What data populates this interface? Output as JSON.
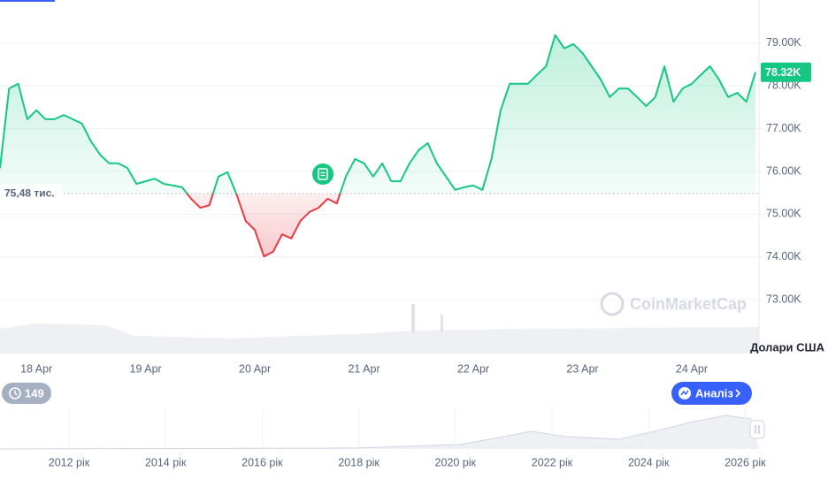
{
  "chart_data": {
    "type": "line",
    "categories": [
      null,
      null,
      null,
      null,
      "18 Apr",
      null,
      null,
      null,
      null,
      null,
      null,
      null,
      null,
      null,
      null,
      null,
      "19 Apr",
      null,
      null,
      null,
      null,
      null,
      null,
      null,
      null,
      null,
      null,
      null,
      "20 Apr",
      null,
      null,
      null,
      null,
      null,
      null,
      null,
      null,
      null,
      null,
      null,
      "21 Apr",
      null,
      null,
      null,
      null,
      null,
      null,
      null,
      null,
      null,
      null,
      null,
      "22 Apr",
      null,
      null,
      null,
      null,
      null,
      null,
      null,
      null,
      null,
      null,
      null,
      "23 Apr",
      null,
      null,
      null,
      null,
      null,
      null,
      null,
      null,
      null,
      null,
      null,
      "24 Apr",
      null,
      null,
      null,
      null,
      null,
      null,
      null
    ],
    "values": [
      76080,
      77940,
      78050,
      77220,
      77430,
      77220,
      77220,
      77320,
      77220,
      77120,
      76700,
      76390,
      76190,
      76190,
      76080,
      75710,
      75770,
      75830,
      75710,
      75670,
      75630,
      75360,
      75150,
      75210,
      75880,
      75980,
      75460,
      74840,
      74630,
      74010,
      74120,
      74530,
      74430,
      74840,
      75050,
      75150,
      75360,
      75250,
      75880,
      76290,
      76190,
      75880,
      76190,
      75770,
      75770,
      76190,
      76500,
      76660,
      76190,
      75880,
      75570,
      75630,
      75670,
      75570,
      76290,
      77430,
      78050,
      78050,
      78050,
      78260,
      78460,
      79190,
      78880,
      78980,
      78770,
      78460,
      78150,
      77740,
      77940,
      77940,
      77740,
      77530,
      77740,
      78460,
      77630,
      77940,
      78050,
      78260,
      78460,
      78150,
      77740,
      77840,
      77630,
      78320
    ],
    "up_color": "#16c784",
    "down_color": "#ea3943",
    "ylim": [
      71740,
      80010
    ],
    "yticks": [
      {
        "value": 73000,
        "label": "73.00K"
      },
      {
        "value": 74000,
        "label": "74.00K"
      },
      {
        "value": 75000,
        "label": "75.00K"
      },
      {
        "value": 76000,
        "label": "76.00K"
      },
      {
        "value": 77000,
        "label": "77.00K"
      },
      {
        "value": 78000,
        "label": "78.00K"
      },
      {
        "value": 79000,
        "label": "79.00K"
      }
    ],
    "grid": true,
    "baseline": {
      "value": 75480,
      "label": "75,48 тис."
    },
    "last_price": {
      "value": 78320,
      "label": "78.32K"
    },
    "y_axis_label": "Долари США"
  },
  "watermark": "CoinMarketCap",
  "navigator": {
    "labels": [
      "2012 рік",
      "2014 рік",
      "2016 рік",
      "2018 рік",
      "2020 рік",
      "2022 рік",
      "2024 рік",
      "2026 рік"
    ]
  },
  "controls": {
    "history_count": 149,
    "analysis_button": "Аналіз"
  }
}
